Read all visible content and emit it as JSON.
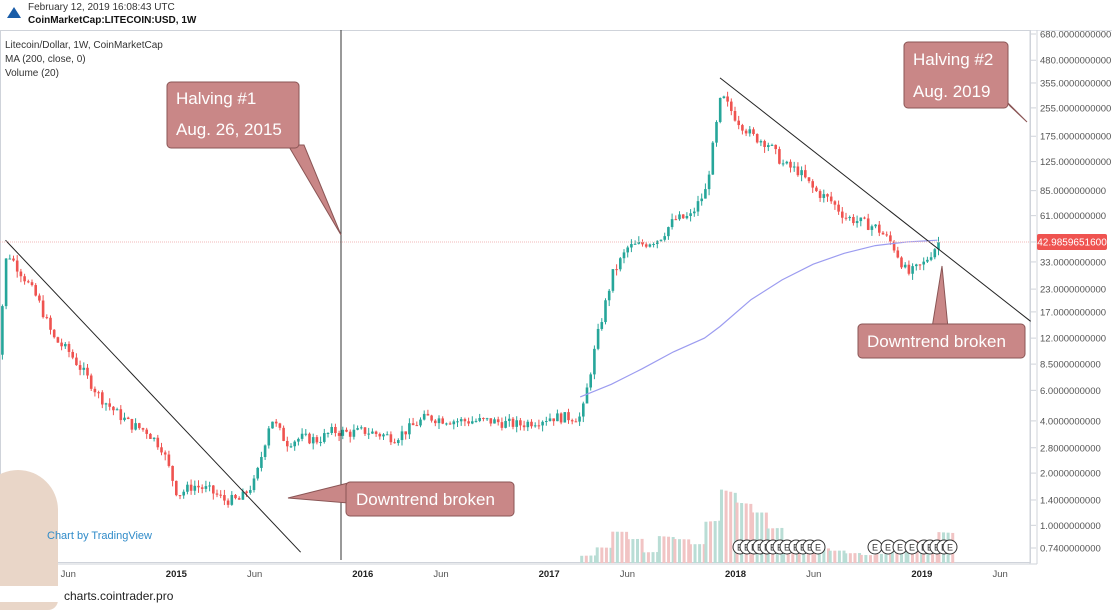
{
  "header": {
    "timestamp": "February 12, 2019 16:08:43 UTC",
    "symbol": "CoinMarketCap:LITECOIN:USD, 1W"
  },
  "legend": {
    "title": "Litecoin/Dollar, 1W, CoinMarketCap",
    "ma": "MA (200, close, 0)",
    "volume": "Volume (20)"
  },
  "annotations": {
    "halving1_line1": "Halving #1",
    "halving1_line2": "Aug. 26, 2015",
    "halving2_line1": "Halving #2",
    "halving2_line2": "Aug. 2019",
    "downtrend_broken_left": "Downtrend broken",
    "downtrend_broken_right": "Downtrend broken"
  },
  "price_marker": "42.9859651600",
  "attribution": "Chart by TradingView",
  "source": "charts.cointrader.pro",
  "colors": {
    "up": "#26a69a",
    "down": "#ef5350",
    "ma": "#9c9cf0",
    "callout": "#c98787",
    "price_marker": "#ef5350"
  },
  "chart_data": {
    "type": "candlestick",
    "title": "Litecoin/Dollar, 1W, CoinMarketCap",
    "y_scale": "log",
    "y_ticks": [
      "680.0000000000",
      "480.0000000000",
      "355.0000000000",
      "255.0000000000",
      "175.0000000000",
      "125.0000000000",
      "85.0000000000",
      "61.0000000000",
      "43.0000000000",
      "33.0000000000",
      "23.0000000000",
      "17.0000000000",
      "12.0000000000",
      "8.5000000000",
      "6.0000000000",
      "4.0000000000",
      "2.8000000000",
      "2.0000000000",
      "1.4000000000",
      "1.0000000000",
      "0.7400000000"
    ],
    "x_ticks": [
      "14",
      "Jun",
      "2015",
      "Jun",
      "2016",
      "Jun",
      "2017",
      "Jun",
      "2018",
      "Jun",
      "2019",
      "Jun"
    ],
    "x_range": [
      "2014-01",
      "2019-08"
    ],
    "last_price": 42.98596516,
    "price_path": [
      [
        "2014-01",
        3.1
      ],
      [
        "2014-02",
        38
      ],
      [
        "2014-03",
        28
      ],
      [
        "2014-04",
        20
      ],
      [
        "2014-05",
        12
      ],
      [
        "2014-06",
        10
      ],
      [
        "2014-07",
        7.5
      ],
      [
        "2014-08",
        5.5
      ],
      [
        "2014-09",
        4.5
      ],
      [
        "2014-10",
        3.8
      ],
      [
        "2014-11",
        3.5
      ],
      [
        "2014-12",
        2.8
      ],
      [
        "2015-01",
        1.5
      ],
      [
        "2015-02",
        1.7
      ],
      [
        "2015-03",
        1.6
      ],
      [
        "2015-04",
        1.4
      ],
      [
        "2015-05",
        1.4
      ],
      [
        "2015-06",
        1.8
      ],
      [
        "2015-07",
        4.2
      ],
      [
        "2015-08",
        3.0
      ],
      [
        "2015-09",
        3.2
      ],
      [
        "2015-10",
        3.1
      ],
      [
        "2015-11",
        3.5
      ],
      [
        "2015-12",
        3.4
      ],
      [
        "2016-01",
        3.5
      ],
      [
        "2016-03",
        3.2
      ],
      [
        "2016-05",
        4.2
      ],
      [
        "2016-07",
        4.0
      ],
      [
        "2016-09",
        4.0
      ],
      [
        "2016-11",
        3.8
      ],
      [
        "2017-01",
        4.2
      ],
      [
        "2017-02",
        4.2
      ],
      [
        "2017-03",
        4.2
      ],
      [
        "2017-04",
        12
      ],
      [
        "2017-05",
        28
      ],
      [
        "2017-06",
        40
      ],
      [
        "2017-07",
        42
      ],
      [
        "2017-08",
        45
      ],
      [
        "2017-09",
        58
      ],
      [
        "2017-10",
        60
      ],
      [
        "2017-11",
        85
      ],
      [
        "2017-12",
        300
      ],
      [
        "2018-01",
        220
      ],
      [
        "2018-02",
        175
      ],
      [
        "2018-03",
        160
      ],
      [
        "2018-04",
        120
      ],
      [
        "2018-05",
        110
      ],
      [
        "2018-06",
        85
      ],
      [
        "2018-07",
        75
      ],
      [
        "2018-08",
        60
      ],
      [
        "2018-09",
        56
      ],
      [
        "2018-10",
        52
      ],
      [
        "2018-11",
        42
      ],
      [
        "2018-12",
        28
      ],
      [
        "2019-01",
        32
      ],
      [
        "2019-02",
        43
      ]
    ],
    "ma200": [
      [
        "2017-03",
        5.5
      ],
      [
        "2017-05",
        6.5
      ],
      [
        "2017-07",
        8.0
      ],
      [
        "2017-09",
        10
      ],
      [
        "2017-11",
        12
      ],
      [
        "2017-12",
        14
      ],
      [
        "2018-02",
        20
      ],
      [
        "2018-04",
        26
      ],
      [
        "2018-06",
        32
      ],
      [
        "2018-08",
        37
      ],
      [
        "2018-10",
        41
      ],
      [
        "2018-12",
        43
      ],
      [
        "2019-02",
        44
      ]
    ],
    "trendlines": [
      {
        "from": [
          "2014-02",
          44
        ],
        "to": [
          "2015-09",
          0.7
        ]
      },
      {
        "from": [
          "2017-12",
          380
        ],
        "to": [
          "2019-08",
          15
        ]
      }
    ],
    "volume": [
      [
        "2017-03",
        0.1
      ],
      [
        "2017-04",
        0.15
      ],
      [
        "2017-05",
        0.25
      ],
      [
        "2017-06",
        0.2
      ],
      [
        "2017-07",
        0.12
      ],
      [
        "2017-08",
        0.3
      ],
      [
        "2017-09",
        0.2
      ],
      [
        "2017-10",
        0.15
      ],
      [
        "2017-11",
        0.4
      ],
      [
        "2017-12",
        1.0
      ],
      [
        "2018-01",
        0.55
      ],
      [
        "2018-02",
        0.4
      ],
      [
        "2018-03",
        0.3
      ],
      [
        "2018-04",
        0.2
      ],
      [
        "2018-05",
        0.15
      ],
      [
        "2018-06",
        0.12
      ],
      [
        "2018-07",
        0.1
      ],
      [
        "2018-08",
        0.1
      ],
      [
        "2018-09",
        0.1
      ],
      [
        "2018-10",
        0.08
      ],
      [
        "2018-11",
        0.15
      ],
      [
        "2018-12",
        0.2
      ],
      [
        "2019-01",
        0.15
      ],
      [
        "2019-02",
        0.3
      ]
    ],
    "events": [
      "E",
      "E",
      "E",
      "E",
      "E",
      "E",
      "E",
      "E",
      "E",
      "E",
      "E",
      "E",
      "E",
      "E",
      "E",
      "E",
      "E",
      "E",
      "E",
      "E",
      "E"
    ]
  }
}
